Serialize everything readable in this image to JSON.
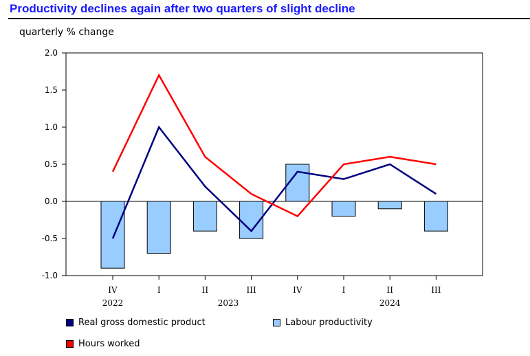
{
  "title": "Productivity declines again after two quarters of slight decline",
  "chart_data": {
    "type": "bar",
    "title": "Productivity declines again after two quarters of slight decline",
    "ylabel": "quarterly % change",
    "xlabel": "",
    "ylim": [
      -1.0,
      2.0
    ],
    "yticks": [
      "2.0",
      "1.5",
      "1.0",
      "0.5",
      "0.0",
      "-0.5",
      "-1.0"
    ],
    "ytick_values": [
      2.0,
      1.5,
      1.0,
      0.5,
      0.0,
      -0.5,
      -1.0
    ],
    "categories": [
      "IV",
      "I",
      "II",
      "III",
      "IV",
      "I",
      "II",
      "III"
    ],
    "year_labels": [
      {
        "label": "2022",
        "index": 0
      },
      {
        "label": "2023",
        "index": 2.5
      },
      {
        "label": "2024",
        "index": 6
      }
    ],
    "series": [
      {
        "name": "Labour productivity",
        "kind": "bar",
        "color": "#99ccff",
        "values": [
          -0.9,
          -0.7,
          -0.4,
          -0.5,
          0.5,
          -0.2,
          -0.1,
          -0.4
        ]
      },
      {
        "name": "Real gross domestic product",
        "kind": "line",
        "color": "#000080",
        "values": [
          -0.5,
          1.0,
          0.2,
          -0.4,
          0.4,
          0.3,
          0.5,
          0.1
        ]
      },
      {
        "name": "Hours worked",
        "kind": "line",
        "color": "#ff0000",
        "values": [
          0.4,
          1.7,
          0.6,
          0.1,
          -0.2,
          0.5,
          0.6,
          0.5
        ]
      }
    ]
  },
  "legend": {
    "gdp": "Real gross domestic product",
    "productivity": "Labour productivity",
    "hours": "Hours worked"
  },
  "colors": {
    "gdp": "#000080",
    "productivity": "#99ccff",
    "hours": "#ff0000",
    "title": "#1a1aff"
  }
}
